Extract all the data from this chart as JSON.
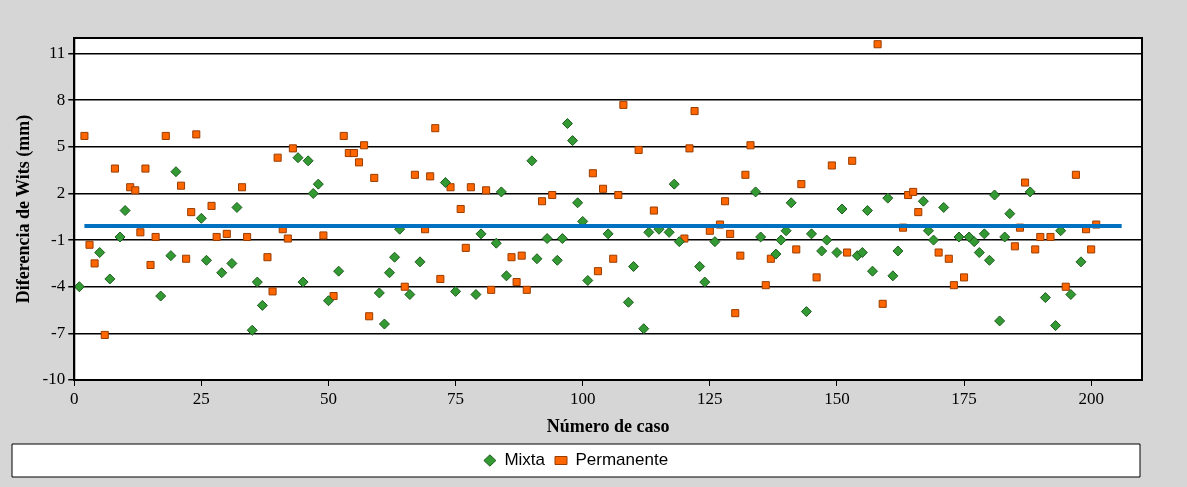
{
  "chart_data": {
    "type": "scatter",
    "xlabel": "Número de caso",
    "ylabel": "Diferencia de Wits (mm)",
    "xlim": [
      0,
      210
    ],
    "xticks": [
      0,
      25,
      50,
      75,
      100,
      125,
      150,
      175,
      200
    ],
    "ylim": [
      -10,
      12
    ],
    "yticks": [
      -10,
      -7,
      -4,
      -1,
      2,
      5,
      8,
      11
    ],
    "grid": "y",
    "legend": "bottom",
    "series": [
      {
        "name": "Mixta",
        "color": "#339933",
        "marker": "diamond",
        "x": [
          1,
          5,
          7,
          9,
          10,
          17,
          19,
          20,
          25,
          26,
          29,
          31,
          32,
          35,
          36,
          37,
          44,
          45,
          46,
          47,
          48,
          50,
          52,
          60,
          61,
          62,
          63,
          64,
          66,
          68,
          73,
          75,
          79,
          80,
          83,
          84,
          85,
          90,
          91,
          93,
          95,
          96,
          97,
          98,
          99,
          100,
          101,
          105,
          109,
          110,
          112,
          113,
          115,
          117,
          118,
          119,
          123,
          124,
          126,
          134,
          135,
          138,
          139,
          140,
          141,
          144,
          145,
          147,
          148,
          150,
          151,
          154,
          155,
          156,
          157,
          160,
          161,
          162,
          167,
          168,
          169,
          171,
          174,
          176,
          177,
          178,
          179,
          180,
          181,
          182,
          183,
          184,
          188,
          191,
          193,
          194,
          196,
          198
        ],
        "values": [
          -4.0,
          -1.8,
          -3.5,
          -0.8,
          0.9,
          -4.6,
          -2.0,
          3.4,
          0.4,
          -2.3,
          -3.1,
          -2.5,
          1.1,
          -6.8,
          -3.7,
          -5.2,
          4.3,
          -3.7,
          4.1,
          2.0,
          2.6,
          -4.9,
          -3.0,
          -4.4,
          -6.4,
          -3.1,
          -2.1,
          -0.3,
          -4.5,
          -2.4,
          2.7,
          -4.3,
          -4.5,
          -0.6,
          -1.2,
          2.1,
          -3.3,
          4.1,
          -2.2,
          -0.9,
          -2.3,
          -0.9,
          6.5,
          5.4,
          1.4,
          0.2,
          -3.6,
          -0.6,
          -5.0,
          -2.7,
          -6.7,
          -0.5,
          -0.3,
          -0.5,
          2.6,
          -1.1,
          -2.7,
          -3.7,
          -1.1,
          2.1,
          -0.8,
          -1.9,
          -1.0,
          -0.4,
          1.4,
          -5.6,
          -0.6,
          -1.7,
          -1.0,
          -1.8,
          1.0,
          -2.0,
          -1.8,
          0.9,
          -3.0,
          1.7,
          -3.3,
          -1.7,
          1.5,
          -0.4,
          -1.0,
          1.1,
          -0.8,
          -0.8,
          -1.1,
          -1.8,
          -0.6,
          -2.3,
          1.9,
          -6.2,
          -0.8,
          0.7,
          2.1,
          -4.7,
          -6.5,
          -0.4,
          -4.5,
          -2.4
        ]
      },
      {
        "name": "Permanente",
        "color": "#ff6600",
        "marker": "square",
        "x": [
          2,
          3,
          4,
          6,
          8,
          11,
          12,
          13,
          14,
          15,
          16,
          18,
          21,
          22,
          23,
          24,
          27,
          28,
          30,
          33,
          34,
          38,
          39,
          40,
          41,
          42,
          43,
          49,
          51,
          53,
          54,
          55,
          56,
          57,
          58,
          59,
          65,
          67,
          69,
          70,
          71,
          72,
          74,
          76,
          77,
          78,
          81,
          82,
          86,
          87,
          88,
          89,
          92,
          94,
          102,
          103,
          104,
          106,
          107,
          108,
          111,
          114,
          120,
          121,
          122,
          125,
          127,
          128,
          129,
          130,
          131,
          132,
          133,
          136,
          137,
          142,
          143,
          146,
          149,
          152,
          153,
          158,
          159,
          163,
          164,
          165,
          166,
          170,
          172,
          173,
          175,
          185,
          186,
          187,
          189,
          190,
          192,
          195,
          197,
          199,
          200,
          201
        ],
        "values": [
          5.7,
          -1.3,
          -2.5,
          -7.1,
          3.6,
          2.4,
          2.2,
          -0.5,
          3.6,
          -2.6,
          -0.8,
          5.7,
          2.5,
          -2.2,
          0.8,
          5.8,
          1.2,
          -0.8,
          -0.6,
          2.4,
          -0.8,
          -2.1,
          -4.3,
          4.3,
          -0.3,
          -0.9,
          4.9,
          -0.7,
          -4.6,
          5.7,
          4.6,
          4.6,
          4.0,
          5.1,
          -5.9,
          3.0,
          -4.0,
          3.2,
          -0.3,
          3.1,
          6.2,
          -3.5,
          2.4,
          1.0,
          -1.5,
          2.4,
          2.2,
          -4.2,
          -2.1,
          -3.7,
          -2.0,
          -4.2,
          1.5,
          1.9,
          3.3,
          -3.0,
          2.3,
          -2.2,
          1.9,
          7.7,
          4.8,
          0.9,
          -0.9,
          4.9,
          7.3,
          -0.4,
          0.0,
          1.5,
          -0.6,
          -5.7,
          -2.0,
          3.2,
          5.1,
          -3.9,
          -2.2,
          -1.6,
          2.6,
          -3.4,
          3.8,
          -1.8,
          4.1,
          11.6,
          -5.1,
          -0.2,
          1.9,
          2.1,
          0.8,
          -1.8,
          -2.2,
          -3.9,
          -3.4,
          -1.4,
          -0.2,
          2.7,
          -1.6,
          -0.8,
          -0.8,
          -4.0,
          3.2,
          -0.3,
          -1.6,
          0.0
        ]
      },
      {
        "type": "line",
        "color": "#0070c0",
        "marker": "none",
        "x": [
          2,
          206
        ],
        "values": [
          -0.1,
          -0.1
        ]
      }
    ]
  }
}
